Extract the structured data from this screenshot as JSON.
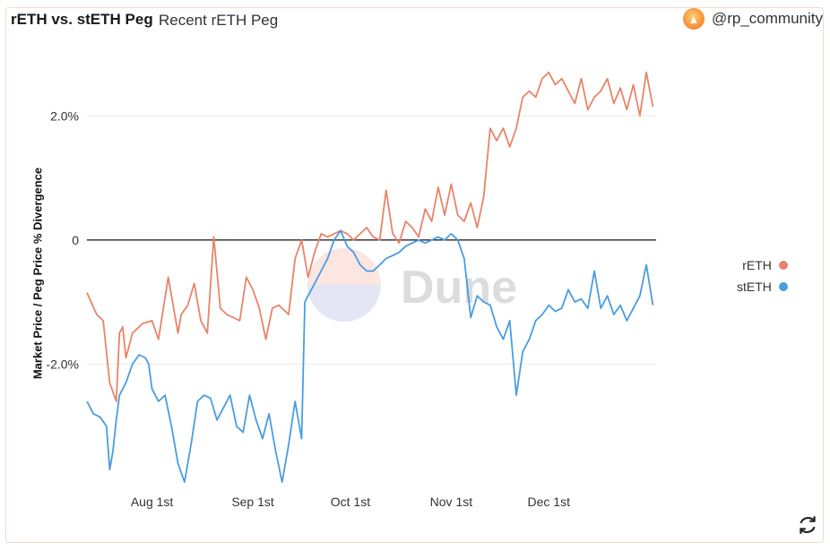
{
  "header": {
    "title": "rETH vs. stETH Peg",
    "subtitle": "Recent rETH Peg",
    "author": "@rp_community",
    "avatar_icon": "rocket-icon"
  },
  "colors": {
    "reth": "#e8846a",
    "steth": "#4a9de0",
    "zero_line": "#111111",
    "grid": "#ececec"
  },
  "refresh_icon": "refresh-icon",
  "watermark": "Dune",
  "chart_data": {
    "type": "line",
    "ylabel": "Market Price / Peg Price % Divergence",
    "xlabel": "",
    "x_ticks": [
      "Aug 1st",
      "Sep 1st",
      "Oct 1st",
      "Nov 1st",
      "Dec 1st"
    ],
    "y_ticks": [
      "2.0%",
      "0",
      "-2.0%"
    ],
    "ylim": [
      -4,
      3
    ],
    "xlim": [
      0,
      175
    ],
    "x_tick_days": [
      20,
      51,
      81,
      112,
      142
    ],
    "legend_position": "right",
    "series": [
      {
        "name": "rETH",
        "x": [
          0,
          3,
          5,
          7,
          9,
          10,
          11,
          12,
          14,
          16,
          17,
          20,
          22,
          25,
          28,
          29,
          31,
          33,
          35,
          37,
          39,
          41,
          43,
          45,
          47,
          49,
          51,
          53,
          55,
          57,
          59,
          60,
          62,
          64,
          66,
          68,
          70,
          72,
          74,
          76,
          78,
          80,
          82,
          84,
          86,
          88,
          90,
          92,
          94,
          96,
          98,
          100,
          102,
          104,
          106,
          108,
          110,
          112,
          114,
          116,
          118,
          120,
          122,
          124,
          126,
          128,
          130,
          132,
          134,
          136,
          138,
          140,
          142,
          144,
          146,
          148,
          150,
          152,
          154,
          156,
          158,
          160,
          162,
          164,
          166,
          168,
          170,
          172,
          174
        ],
        "values": [
          -0.85,
          -1.2,
          -1.3,
          -2.3,
          -2.6,
          -1.5,
          -1.4,
          -1.9,
          -1.5,
          -1.4,
          -1.35,
          -1.3,
          -1.6,
          -0.6,
          -1.5,
          -1.2,
          -1.05,
          -0.7,
          -1.3,
          -1.5,
          0.05,
          -1.1,
          -1.2,
          -1.25,
          -1.3,
          -0.6,
          -0.8,
          -1.1,
          -1.6,
          -1.1,
          -1.05,
          -1.1,
          -1.2,
          -0.3,
          0.0,
          -0.6,
          -0.2,
          0.1,
          0.05,
          0.1,
          0.15,
          0.1,
          0.0,
          0.1,
          0.2,
          0.05,
          0.0,
          0.8,
          0.1,
          -0.05,
          0.3,
          0.2,
          0.05,
          0.5,
          0.3,
          0.85,
          0.4,
          0.9,
          0.4,
          0.3,
          0.6,
          0.2,
          0.7,
          1.8,
          1.6,
          1.8,
          1.5,
          1.8,
          2.3,
          2.4,
          2.3,
          2.6,
          2.7,
          2.5,
          2.6,
          2.4,
          2.2,
          2.6,
          2.1,
          2.3,
          2.4,
          2.6,
          2.2,
          2.45,
          2.1,
          2.5,
          2.0,
          2.7,
          2.15
        ]
      },
      {
        "name": "stETH",
        "x": [
          0,
          2,
          4,
          6,
          7,
          8,
          9,
          10,
          12,
          14,
          16,
          18,
          19,
          20,
          22,
          24,
          26,
          28,
          30,
          32,
          34,
          36,
          38,
          40,
          42,
          44,
          46,
          48,
          50,
          52,
          54,
          56,
          58,
          60,
          62,
          64,
          66,
          67,
          68,
          70,
          72,
          74,
          76,
          78,
          80,
          82,
          84,
          86,
          88,
          90,
          92,
          94,
          96,
          98,
          100,
          102,
          104,
          106,
          108,
          110,
          112,
          114,
          116,
          118,
          120,
          122,
          124,
          126,
          128,
          130,
          132,
          134,
          136,
          138,
          140,
          142,
          144,
          146,
          148,
          150,
          152,
          154,
          156,
          158,
          160,
          162,
          164,
          166,
          168,
          170,
          172,
          174
        ],
        "values": [
          -2.6,
          -2.8,
          -2.85,
          -3.0,
          -3.7,
          -3.4,
          -2.9,
          -2.5,
          -2.3,
          -2.0,
          -1.85,
          -1.9,
          -2.0,
          -2.4,
          -2.6,
          -2.5,
          -3.0,
          -3.6,
          -3.9,
          -3.3,
          -2.6,
          -2.5,
          -2.55,
          -2.9,
          -2.7,
          -2.5,
          -3.0,
          -3.1,
          -2.5,
          -2.9,
          -3.2,
          -2.8,
          -3.4,
          -3.9,
          -3.3,
          -2.6,
          -3.2,
          -1.0,
          -0.9,
          -0.7,
          -0.5,
          -0.3,
          0.0,
          0.15,
          -0.1,
          -0.2,
          -0.4,
          -0.5,
          -0.5,
          -0.4,
          -0.3,
          -0.25,
          -0.2,
          -0.1,
          -0.05,
          0.0,
          -0.05,
          0.0,
          0.05,
          0.0,
          0.1,
          0.0,
          -0.3,
          -1.25,
          -0.9,
          -1.0,
          -1.05,
          -1.4,
          -1.6,
          -1.3,
          -2.5,
          -1.8,
          -1.6,
          -1.3,
          -1.2,
          -1.05,
          -1.15,
          -1.1,
          -0.8,
          -1.0,
          -0.95,
          -1.1,
          -0.5,
          -1.1,
          -0.9,
          -1.2,
          -1.05,
          -1.3,
          -1.1,
          -0.9,
          -0.4,
          -1.05
        ]
      }
    ]
  },
  "legend": {
    "items": [
      {
        "label": "rETH"
      },
      {
        "label": "stETH"
      }
    ]
  }
}
